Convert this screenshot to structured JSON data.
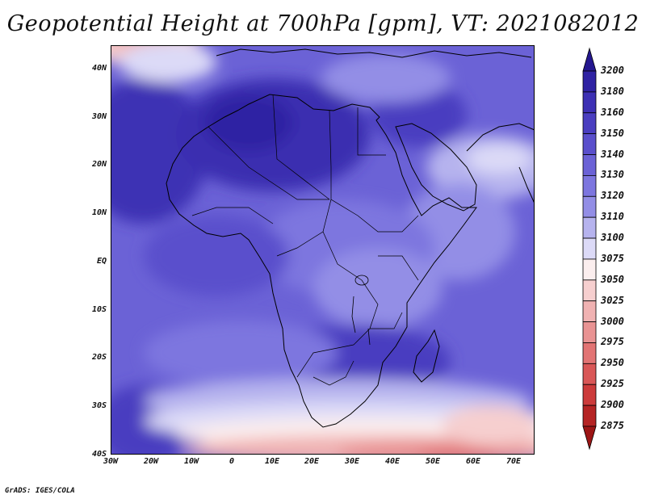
{
  "title": "Geopotential Height at 700hPa [gpm], VT: 2021082012",
  "footer": "GrADS: IGES/COLA",
  "lat_labels": [
    "40N",
    "30N",
    "20N",
    "10N",
    "EQ",
    "10S",
    "20S",
    "30S",
    "40S"
  ],
  "lon_labels": [
    "30W",
    "20W",
    "10W",
    "0",
    "10E",
    "20E",
    "30E",
    "40E",
    "50E",
    "60E",
    "70E"
  ],
  "colorbar": {
    "levels": [
      "3200",
      "3180",
      "3160",
      "3150",
      "3140",
      "3130",
      "3120",
      "3110",
      "3100",
      "3075",
      "3050",
      "3025",
      "3000",
      "2975",
      "2950",
      "2925",
      "2900",
      "2875"
    ],
    "colors": [
      "#24178f",
      "#2f22a3",
      "#3d30b4",
      "#4a3ec0",
      "#5a4fcc",
      "#6b62d6",
      "#7d76df",
      "#938ee6",
      "#b6b3ee",
      "#dcdaf7",
      "#fbeeee",
      "#f6cfcf",
      "#f0b2b2",
      "#e99393",
      "#e27474",
      "#d95757",
      "#cc3b3b",
      "#b52424",
      "#9c1515"
    ]
  },
  "legend_title": ""
}
